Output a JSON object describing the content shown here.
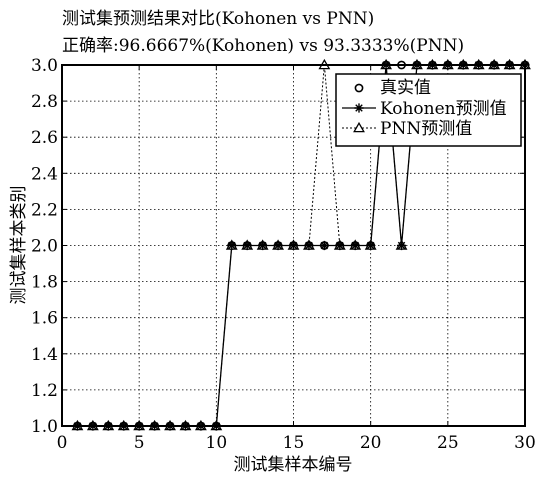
{
  "chart_data": {
    "type": "line",
    "title": [
      "测试集预测结果对比(Kohonen vs PNN)",
      "正确率:96.6667%(Kohonen) vs 93.3333%(PNN)"
    ],
    "xlabel": "测试集样本编号",
    "ylabel": "测试集样本类别",
    "xlim": [
      0,
      30
    ],
    "ylim": [
      1.0,
      3.0
    ],
    "x_ticks": [
      0,
      5,
      10,
      15,
      20,
      25,
      30
    ],
    "y_ticks": [
      1.0,
      1.2,
      1.4,
      1.6,
      1.8,
      2.0,
      2.2,
      2.4,
      2.6,
      2.8,
      3.0
    ],
    "y_tick_labels": [
      "1.0",
      "1.2",
      "1.4",
      "1.6",
      "1.8",
      "2.0",
      "2.2",
      "2.4",
      "2.6",
      "2.8",
      "3.0"
    ],
    "grid": true,
    "legend_position": "top-right",
    "x": [
      1,
      2,
      3,
      4,
      5,
      6,
      7,
      8,
      9,
      10,
      11,
      12,
      13,
      14,
      15,
      16,
      17,
      18,
      19,
      20,
      21,
      22,
      23,
      24,
      25,
      26,
      27,
      28,
      29,
      30
    ],
    "series": [
      {
        "name": "真实值",
        "marker": "circle",
        "line": "none",
        "values": [
          1,
          1,
          1,
          1,
          1,
          1,
          1,
          1,
          1,
          1,
          2,
          2,
          2,
          2,
          2,
          2,
          2,
          2,
          2,
          2,
          3,
          3,
          3,
          3,
          3,
          3,
          3,
          3,
          3,
          3
        ]
      },
      {
        "name": "Kohonen预测值",
        "marker": "star",
        "line": "solid",
        "values": [
          1,
          1,
          1,
          1,
          1,
          1,
          1,
          1,
          1,
          1,
          2,
          2,
          2,
          2,
          2,
          2,
          2,
          2,
          2,
          2,
          3,
          2,
          3,
          3,
          3,
          3,
          3,
          3,
          3,
          3
        ]
      },
      {
        "name": "PNN预测值",
        "marker": "triangle",
        "line": "dotted",
        "values": [
          1,
          1,
          1,
          1,
          1,
          1,
          1,
          1,
          1,
          1,
          2,
          2,
          2,
          2,
          2,
          2,
          3,
          2,
          2,
          2,
          3,
          2,
          3,
          3,
          3,
          3,
          3,
          3,
          3,
          3
        ]
      }
    ]
  }
}
